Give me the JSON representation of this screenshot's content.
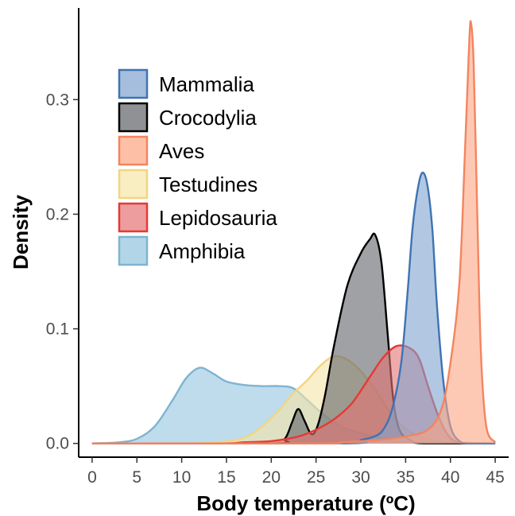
{
  "chart_data": {
    "type": "area",
    "xlabel": "Body temperature (ºC)",
    "ylabel": "Density",
    "xlim": [
      -1.5,
      46.5
    ],
    "ylim": [
      -0.012,
      0.38
    ],
    "x_ticks": [
      0,
      5,
      10,
      15,
      20,
      25,
      30,
      35,
      40,
      45
    ],
    "y_ticks": [
      0.0,
      0.1,
      0.2,
      0.3
    ],
    "y_tick_labels": [
      "0.0",
      "0.1",
      "0.2",
      "0.3"
    ],
    "grid": false,
    "legend_position": "top-left",
    "series": [
      {
        "name": "Amphibia",
        "fill": "#92c5de",
        "stroke": "#7fb4d1",
        "points": [
          [
            0,
            0
          ],
          [
            3,
            0.001
          ],
          [
            5,
            0.004
          ],
          [
            7,
            0.015
          ],
          [
            9,
            0.038
          ],
          [
            10.5,
            0.057
          ],
          [
            12,
            0.066
          ],
          [
            13.5,
            0.061
          ],
          [
            15,
            0.054
          ],
          [
            17,
            0.051
          ],
          [
            19,
            0.05
          ],
          [
            21,
            0.05
          ],
          [
            22.5,
            0.048
          ],
          [
            24,
            0.038
          ],
          [
            26,
            0.024
          ],
          [
            28,
            0.014
          ],
          [
            30,
            0.009
          ],
          [
            32,
            0.005
          ],
          [
            35,
            0.002
          ],
          [
            40,
            0
          ],
          [
            45,
            0
          ]
        ]
      },
      {
        "name": "Testudines",
        "fill": "#f7e5a8",
        "stroke": "#f0d682",
        "points": [
          [
            0,
            0
          ],
          [
            10,
            0
          ],
          [
            14,
            0.001
          ],
          [
            17,
            0.005
          ],
          [
            19,
            0.015
          ],
          [
            21,
            0.03
          ],
          [
            22.5,
            0.044
          ],
          [
            24,
            0.055
          ],
          [
            25.5,
            0.068
          ],
          [
            27,
            0.076
          ],
          [
            28.5,
            0.073
          ],
          [
            30,
            0.063
          ],
          [
            31.5,
            0.048
          ],
          [
            33,
            0.03
          ],
          [
            34.5,
            0.016
          ],
          [
            36,
            0.008
          ],
          [
            38,
            0.003
          ],
          [
            40,
            0.001
          ],
          [
            45,
            0
          ]
        ]
      },
      {
        "name": "Crocodylia",
        "fill": "#5f6368",
        "stroke": "#000000",
        "points": [
          [
            0,
            0
          ],
          [
            20,
            0
          ],
          [
            21.5,
            0.004
          ],
          [
            22.3,
            0.018
          ],
          [
            23,
            0.03
          ],
          [
            23.7,
            0.02
          ],
          [
            24.5,
            0.008
          ],
          [
            25.2,
            0.016
          ],
          [
            26,
            0.042
          ],
          [
            27,
            0.085
          ],
          [
            28.5,
            0.138
          ],
          [
            30,
            0.166
          ],
          [
            31,
            0.178
          ],
          [
            31.6,
            0.182
          ],
          [
            32.3,
            0.158
          ],
          [
            33,
            0.095
          ],
          [
            33.6,
            0.04
          ],
          [
            34.3,
            0.012
          ],
          [
            35.5,
            0.003
          ],
          [
            37,
            0
          ],
          [
            45,
            0
          ]
        ]
      },
      {
        "name": "Lepidosauria",
        "fill": "#e57373",
        "stroke": "#e53935",
        "points": [
          [
            0,
            0
          ],
          [
            14,
            0
          ],
          [
            17,
            0.001
          ],
          [
            20,
            0.002
          ],
          [
            23,
            0.006
          ],
          [
            25,
            0.012
          ],
          [
            27,
            0.021
          ],
          [
            29,
            0.035
          ],
          [
            31,
            0.058
          ],
          [
            32.5,
            0.075
          ],
          [
            34,
            0.085
          ],
          [
            35.5,
            0.083
          ],
          [
            36.5,
            0.074
          ],
          [
            37.5,
            0.05
          ],
          [
            38.5,
            0.027
          ],
          [
            39.5,
            0.01
          ],
          [
            40.5,
            0.002
          ],
          [
            42,
            0
          ],
          [
            45,
            0
          ]
        ]
      },
      {
        "name": "Mammalia",
        "fill": "#7fa3cf",
        "stroke": "#3f73b3",
        "points": [
          [
            0,
            0
          ],
          [
            28,
            0
          ],
          [
            30,
            0.003
          ],
          [
            31.5,
            0.006
          ],
          [
            32.5,
            0.012
          ],
          [
            33.5,
            0.03
          ],
          [
            34.5,
            0.07
          ],
          [
            35.2,
            0.13
          ],
          [
            35.8,
            0.19
          ],
          [
            36.5,
            0.228
          ],
          [
            37,
            0.236
          ],
          [
            37.5,
            0.222
          ],
          [
            38,
            0.185
          ],
          [
            38.5,
            0.12
          ],
          [
            39.2,
            0.055
          ],
          [
            40,
            0.015
          ],
          [
            41,
            0.002
          ],
          [
            42,
            0
          ],
          [
            45,
            0
          ]
        ]
      },
      {
        "name": "Aves",
        "fill": "#fca582",
        "stroke": "#f4845f",
        "points": [
          [
            0,
            0
          ],
          [
            25,
            0
          ],
          [
            28,
            0.001
          ],
          [
            32,
            0.003
          ],
          [
            35,
            0.006
          ],
          [
            37.5,
            0.012
          ],
          [
            39,
            0.03
          ],
          [
            40,
            0.07
          ],
          [
            41,
            0.14
          ],
          [
            41.6,
            0.25
          ],
          [
            42.1,
            0.35
          ],
          [
            42.3,
            0.367
          ],
          [
            42.6,
            0.33
          ],
          [
            43,
            0.2
          ],
          [
            43.4,
            0.08
          ],
          [
            44,
            0.015
          ],
          [
            45,
            0.001
          ]
        ]
      }
    ],
    "legend_order": [
      "Mammalia",
      "Crocodylia",
      "Aves",
      "Testudines",
      "Lepidosauria",
      "Amphibia"
    ]
  }
}
